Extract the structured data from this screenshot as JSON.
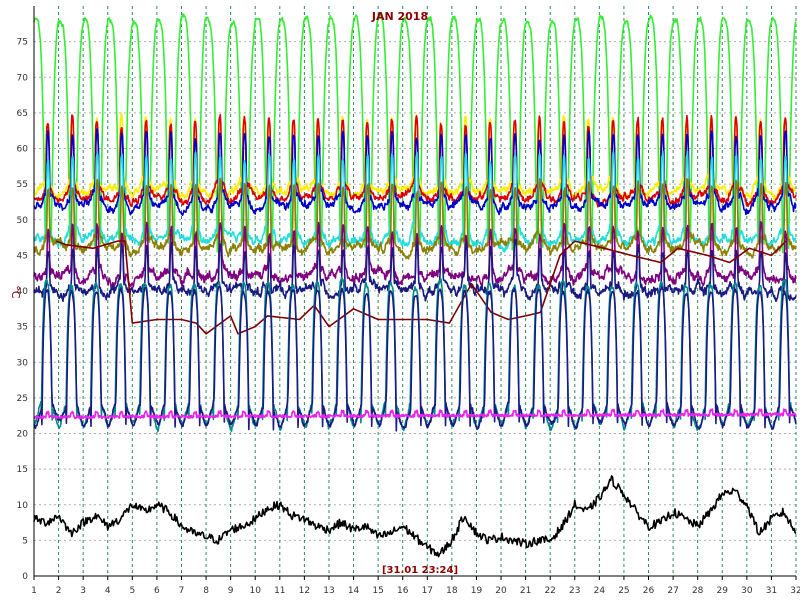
{
  "chart_data": {
    "type": "line",
    "title": "JAN 2018",
    "ylabel": "°C",
    "cursor_label": "[31.01 23:24]",
    "ylim": [
      0,
      80
    ],
    "xlim": [
      1,
      32
    ],
    "y_ticks": [
      0,
      5,
      10,
      15,
      20,
      25,
      30,
      35,
      40,
      45,
      50,
      55,
      60,
      65,
      70,
      75
    ],
    "x_ticks": [
      1,
      2,
      3,
      4,
      5,
      6,
      7,
      8,
      9,
      10,
      11,
      12,
      13,
      14,
      15,
      16,
      17,
      18,
      19,
      20,
      21,
      22,
      23,
      24,
      25,
      26,
      27,
      28,
      29,
      30,
      31,
      32
    ],
    "grid": true,
    "colors": {
      "background": "#ffffff",
      "grid": "#b0b0b0",
      "day_grid": "#2e8b57",
      "title": "#8b0000",
      "axis_text": "#333333"
    },
    "series": [
      {
        "color": "#33ee33",
        "kind": "cycle",
        "high": 78,
        "low": 44,
        "peakWidth": 0.78,
        "noise": 1.0,
        "peakOffset": 0.08,
        "phase": 0.0
      },
      {
        "color": "#ffee00",
        "kind": "cycle",
        "high": 64,
        "low": 54,
        "peakWidth": 0.18,
        "noise": 1.2,
        "peakOffset": 0.55,
        "phase": 0.0
      },
      {
        "color": "#dd0000",
        "kind": "cycle",
        "high": 64,
        "low": 53,
        "peakWidth": 0.17,
        "noise": 1.2,
        "peakOffset": 0.56,
        "phase": 0.0
      },
      {
        "color": "#0000cc",
        "kind": "cycle",
        "high": 62,
        "low": 52,
        "peakWidth": 0.16,
        "noise": 1.3,
        "peakOffset": 0.57,
        "phase": 0.0
      },
      {
        "color": "#22dddd",
        "kind": "cycle",
        "high": 59,
        "low": 47,
        "peakWidth": 0.16,
        "noise": 1.3,
        "peakOffset": 0.57,
        "phase": 0.0
      },
      {
        "color": "#8b8000",
        "kind": "cycle",
        "high": 55,
        "low": 46,
        "peakWidth": 0.14,
        "noise": 1.4,
        "peakOffset": 0.58,
        "phase": 0.0
      },
      {
        "color": "#800080",
        "kind": "cycle",
        "high": 49,
        "low": 42,
        "peakWidth": 0.14,
        "noise": 1.6,
        "peakOffset": 0.58,
        "phase": 0.0
      },
      {
        "color": "#1a1a80",
        "kind": "cycle",
        "high": 46,
        "low": 40,
        "peakWidth": 0.14,
        "noise": 1.6,
        "peakOffset": 0.58,
        "phase": 0.0
      },
      {
        "color": "#800000",
        "kind": "steps",
        "points": [
          [
            1.9,
            47
          ],
          [
            2.3,
            46.5
          ],
          [
            3.4,
            46
          ],
          [
            4.4,
            47
          ],
          [
            4.7,
            47
          ],
          [
            5.0,
            35.5
          ],
          [
            6.0,
            36
          ],
          [
            7.0,
            36
          ],
          [
            7.6,
            35.5
          ],
          [
            8.0,
            34
          ],
          [
            9.0,
            36.5
          ],
          [
            9.3,
            34
          ],
          [
            10.0,
            35
          ],
          [
            10.5,
            36.5
          ],
          [
            11.8,
            36
          ],
          [
            12.4,
            38
          ],
          [
            13.0,
            35
          ],
          [
            14.0,
            37.5
          ],
          [
            15.0,
            36
          ],
          [
            16.0,
            36
          ],
          [
            17.0,
            36
          ],
          [
            17.9,
            35.5
          ],
          [
            18.8,
            41
          ],
          [
            19.6,
            37
          ],
          [
            20.3,
            36
          ],
          [
            21.0,
            36.5
          ],
          [
            21.6,
            37
          ],
          [
            22.4,
            45
          ],
          [
            23.0,
            47
          ],
          [
            24.2,
            46
          ],
          [
            25.3,
            45
          ],
          [
            26.5,
            44
          ],
          [
            27.2,
            46
          ],
          [
            28.4,
            45
          ],
          [
            29.3,
            44
          ],
          [
            30.1,
            46
          ],
          [
            31.0,
            45
          ],
          [
            31.6,
            47
          ]
        ]
      },
      {
        "color": "#008b8b",
        "kind": "cycle",
        "high": 41,
        "low": 21,
        "peakWidth": 0.45,
        "noise": 1.0,
        "peakOffset": 0.52,
        "phase": 0.0
      },
      {
        "color": "#1a1a80",
        "kind": "cycle",
        "high": 40,
        "low": 21.2,
        "peakWidth": 0.42,
        "noise": 0.9,
        "peakOffset": 0.53,
        "phase": 0.0
      },
      {
        "color": "#ee22ee",
        "kind": "flat",
        "base": 22.3,
        "slope": 0.012,
        "noise": 0.4
      },
      {
        "color": "#000000",
        "kind": "profile",
        "points": [
          [
            1,
            8
          ],
          [
            1.5,
            7.5
          ],
          [
            2,
            8.5
          ],
          [
            2.5,
            6
          ],
          [
            3,
            7.5
          ],
          [
            3.5,
            8.5
          ],
          [
            4,
            7
          ],
          [
            4.5,
            8
          ],
          [
            5,
            10
          ],
          [
            5.5,
            9
          ],
          [
            6,
            10
          ],
          [
            6.5,
            9
          ],
          [
            7,
            7
          ],
          [
            7.5,
            6
          ],
          [
            8,
            5.5
          ],
          [
            8.5,
            5
          ],
          [
            9,
            6.5
          ],
          [
            9.5,
            7
          ],
          [
            10,
            8
          ],
          [
            10.5,
            9.5
          ],
          [
            11,
            10
          ],
          [
            11.5,
            8.5
          ],
          [
            12,
            8
          ],
          [
            12.5,
            7
          ],
          [
            13,
            6.5
          ],
          [
            13.5,
            7.5
          ],
          [
            14,
            6.5
          ],
          [
            14.5,
            7
          ],
          [
            15,
            5.5
          ],
          [
            15.5,
            6
          ],
          [
            16,
            7
          ],
          [
            16.5,
            5.5
          ],
          [
            17,
            4
          ],
          [
            17.5,
            3
          ],
          [
            18,
            5
          ],
          [
            18.5,
            8.5
          ],
          [
            19,
            6
          ],
          [
            19.5,
            5
          ],
          [
            20,
            5.5
          ],
          [
            20.5,
            5
          ],
          [
            21,
            4.5
          ],
          [
            21.5,
            5
          ],
          [
            22,
            5
          ],
          [
            22.5,
            7
          ],
          [
            23,
            10
          ],
          [
            23.5,
            9
          ],
          [
            24,
            11
          ],
          [
            24.5,
            13.5
          ],
          [
            25,
            11.5
          ],
          [
            25.5,
            9
          ],
          [
            26,
            7
          ],
          [
            26.5,
            7.5
          ],
          [
            27,
            9
          ],
          [
            27.5,
            8
          ],
          [
            28,
            7
          ],
          [
            28.5,
            9
          ],
          [
            29,
            11.5
          ],
          [
            29.5,
            12
          ],
          [
            30,
            10
          ],
          [
            30.5,
            6
          ],
          [
            31,
            8
          ],
          [
            31.5,
            9
          ],
          [
            32,
            6
          ]
        ]
      }
    ]
  }
}
